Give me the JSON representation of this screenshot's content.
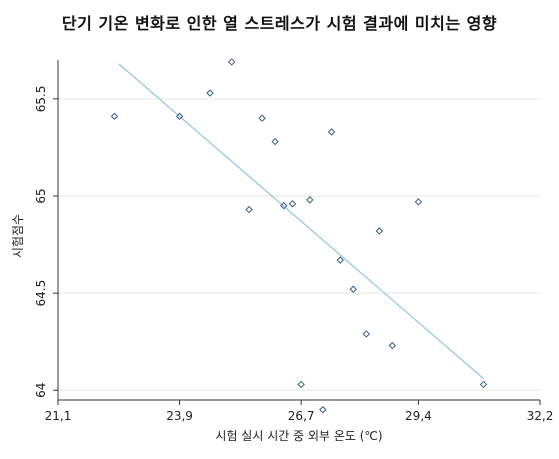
{
  "chart_data": {
    "type": "scatter",
    "title": "단기 기온 변화로 인한 열 스트레스가 시험 결과에 미치는 영향",
    "xlabel": "시험 실시 시간 중 외부 온도 (℃)",
    "ylabel": "시험점수",
    "xlim": [
      21.1,
      32.2
    ],
    "ylim": [
      63.95,
      65.7
    ],
    "xticks": [
      "21,1",
      "23,9",
      "26,7",
      "29,4",
      "32,2"
    ],
    "xtick_values": [
      21.1,
      23.9,
      26.7,
      29.4,
      32.2
    ],
    "yticks": [
      "64",
      "64.5",
      "65",
      "65.5"
    ],
    "ytick_values": [
      64,
      64.5,
      65,
      65.5
    ],
    "grid": "horizontal",
    "colors": {
      "points": "#3a5a8c",
      "trend": "#8ec6e6",
      "grid": "#e6e6e6",
      "axis": "#333333"
    },
    "points": [
      {
        "x": 22.4,
        "y": 65.41
      },
      {
        "x": 23.9,
        "y": 65.41
      },
      {
        "x": 24.6,
        "y": 65.53
      },
      {
        "x": 25.1,
        "y": 65.69
      },
      {
        "x": 25.5,
        "y": 64.93
      },
      {
        "x": 25.8,
        "y": 65.4
      },
      {
        "x": 26.1,
        "y": 65.28
      },
      {
        "x": 26.3,
        "y": 64.95
      },
      {
        "x": 26.5,
        "y": 64.96
      },
      {
        "x": 26.7,
        "y": 64.03
      },
      {
        "x": 26.9,
        "y": 64.98
      },
      {
        "x": 27.2,
        "y": 63.9
      },
      {
        "x": 27.4,
        "y": 65.33
      },
      {
        "x": 27.6,
        "y": 64.67
      },
      {
        "x": 27.9,
        "y": 64.52
      },
      {
        "x": 28.2,
        "y": 64.29
      },
      {
        "x": 28.5,
        "y": 64.82
      },
      {
        "x": 28.8,
        "y": 64.23
      },
      {
        "x": 29.4,
        "y": 64.97
      },
      {
        "x": 30.9,
        "y": 64.03
      }
    ],
    "trendline": {
      "x": [
        22.5,
        30.9
      ],
      "y": [
        65.68,
        64.06
      ]
    }
  }
}
